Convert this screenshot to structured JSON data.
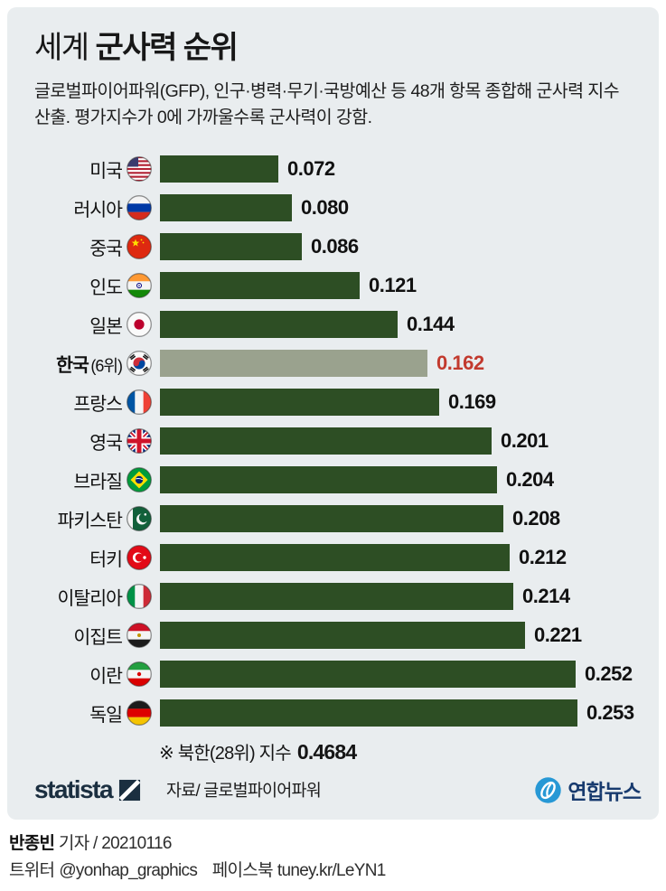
{
  "header": {
    "title_light": "세계 ",
    "title_bold": "군사력 순위",
    "subtitle": "글로벌파이어파워(GFP), 인구·병력·무기·국방예산 등 48개 항목 종합해 군사력 지수 산출. 평가지수가 0에 가까울수록 군사력이 강함."
  },
  "chart_data": {
    "type": "bar",
    "orientation": "horizontal",
    "title": "세계 군사력 순위",
    "xlabel": "",
    "ylabel": "",
    "xlim": [
      0,
      0.253
    ],
    "grid": false,
    "note": "※ 북한(28위) 지수",
    "note_value": "0.4684",
    "categories": [
      "미국",
      "러시아",
      "중국",
      "인도",
      "일본",
      "한국",
      "프랑스",
      "영국",
      "브라질",
      "파키스탄",
      "터키",
      "이탈리아",
      "이집트",
      "이란",
      "독일"
    ],
    "values": [
      0.072,
      0.08,
      0.086,
      0.121,
      0.144,
      0.162,
      0.169,
      0.201,
      0.204,
      0.208,
      0.212,
      0.214,
      0.221,
      0.252,
      0.253
    ],
    "rows": [
      {
        "label": "미국",
        "flag": "us",
        "value": 0.072,
        "display": "0.072",
        "highlight": false
      },
      {
        "label": "러시아",
        "flag": "ru",
        "value": 0.08,
        "display": "0.080",
        "highlight": false
      },
      {
        "label": "중국",
        "flag": "cn",
        "value": 0.086,
        "display": "0.086",
        "highlight": false
      },
      {
        "label": "인도",
        "flag": "in",
        "value": 0.121,
        "display": "0.121",
        "highlight": false
      },
      {
        "label": "일본",
        "flag": "jp",
        "value": 0.144,
        "display": "0.144",
        "highlight": false
      },
      {
        "label": "한국",
        "sublabel": "(6위)",
        "flag": "kr",
        "value": 0.162,
        "display": "0.162",
        "highlight": true
      },
      {
        "label": "프랑스",
        "flag": "fr",
        "value": 0.169,
        "display": "0.169",
        "highlight": false
      },
      {
        "label": "영국",
        "flag": "gb",
        "value": 0.201,
        "display": "0.201",
        "highlight": false
      },
      {
        "label": "브라질",
        "flag": "br",
        "value": 0.204,
        "display": "0.204",
        "highlight": false
      },
      {
        "label": "파키스탄",
        "flag": "pk",
        "value": 0.208,
        "display": "0.208",
        "highlight": false
      },
      {
        "label": "터키",
        "flag": "tr",
        "value": 0.212,
        "display": "0.212",
        "highlight": false
      },
      {
        "label": "이탈리아",
        "flag": "it",
        "value": 0.214,
        "display": "0.214",
        "highlight": false
      },
      {
        "label": "이집트",
        "flag": "eg",
        "value": 0.221,
        "display": "0.221",
        "highlight": false
      },
      {
        "label": "이란",
        "flag": "ir",
        "value": 0.252,
        "display": "0.252",
        "highlight": false
      },
      {
        "label": "독일",
        "flag": "de",
        "value": 0.253,
        "display": "0.253",
        "highlight": false
      }
    ]
  },
  "footer": {
    "statista_word": "statista",
    "source": "자료/ 글로벌파이어파워",
    "agency": "연합뉴스"
  },
  "byline": {
    "author": "반종빈",
    "author_rest": " 기자 / 20210116",
    "twitter_label": "트위터",
    "twitter": "@yonhap_graphics",
    "facebook_label": "페이스북",
    "facebook": "tuney.kr/LeYN1"
  },
  "colors": {
    "card_bg": "#e9edef",
    "bar_green": "#2d4e24",
    "bar_highlight": "#9aa28e",
    "value_red": "#c23a2e",
    "statista_navy": "#1b2f40",
    "yonhap_navy": "#173a6e",
    "yonhap_blue": "#2798d5"
  }
}
